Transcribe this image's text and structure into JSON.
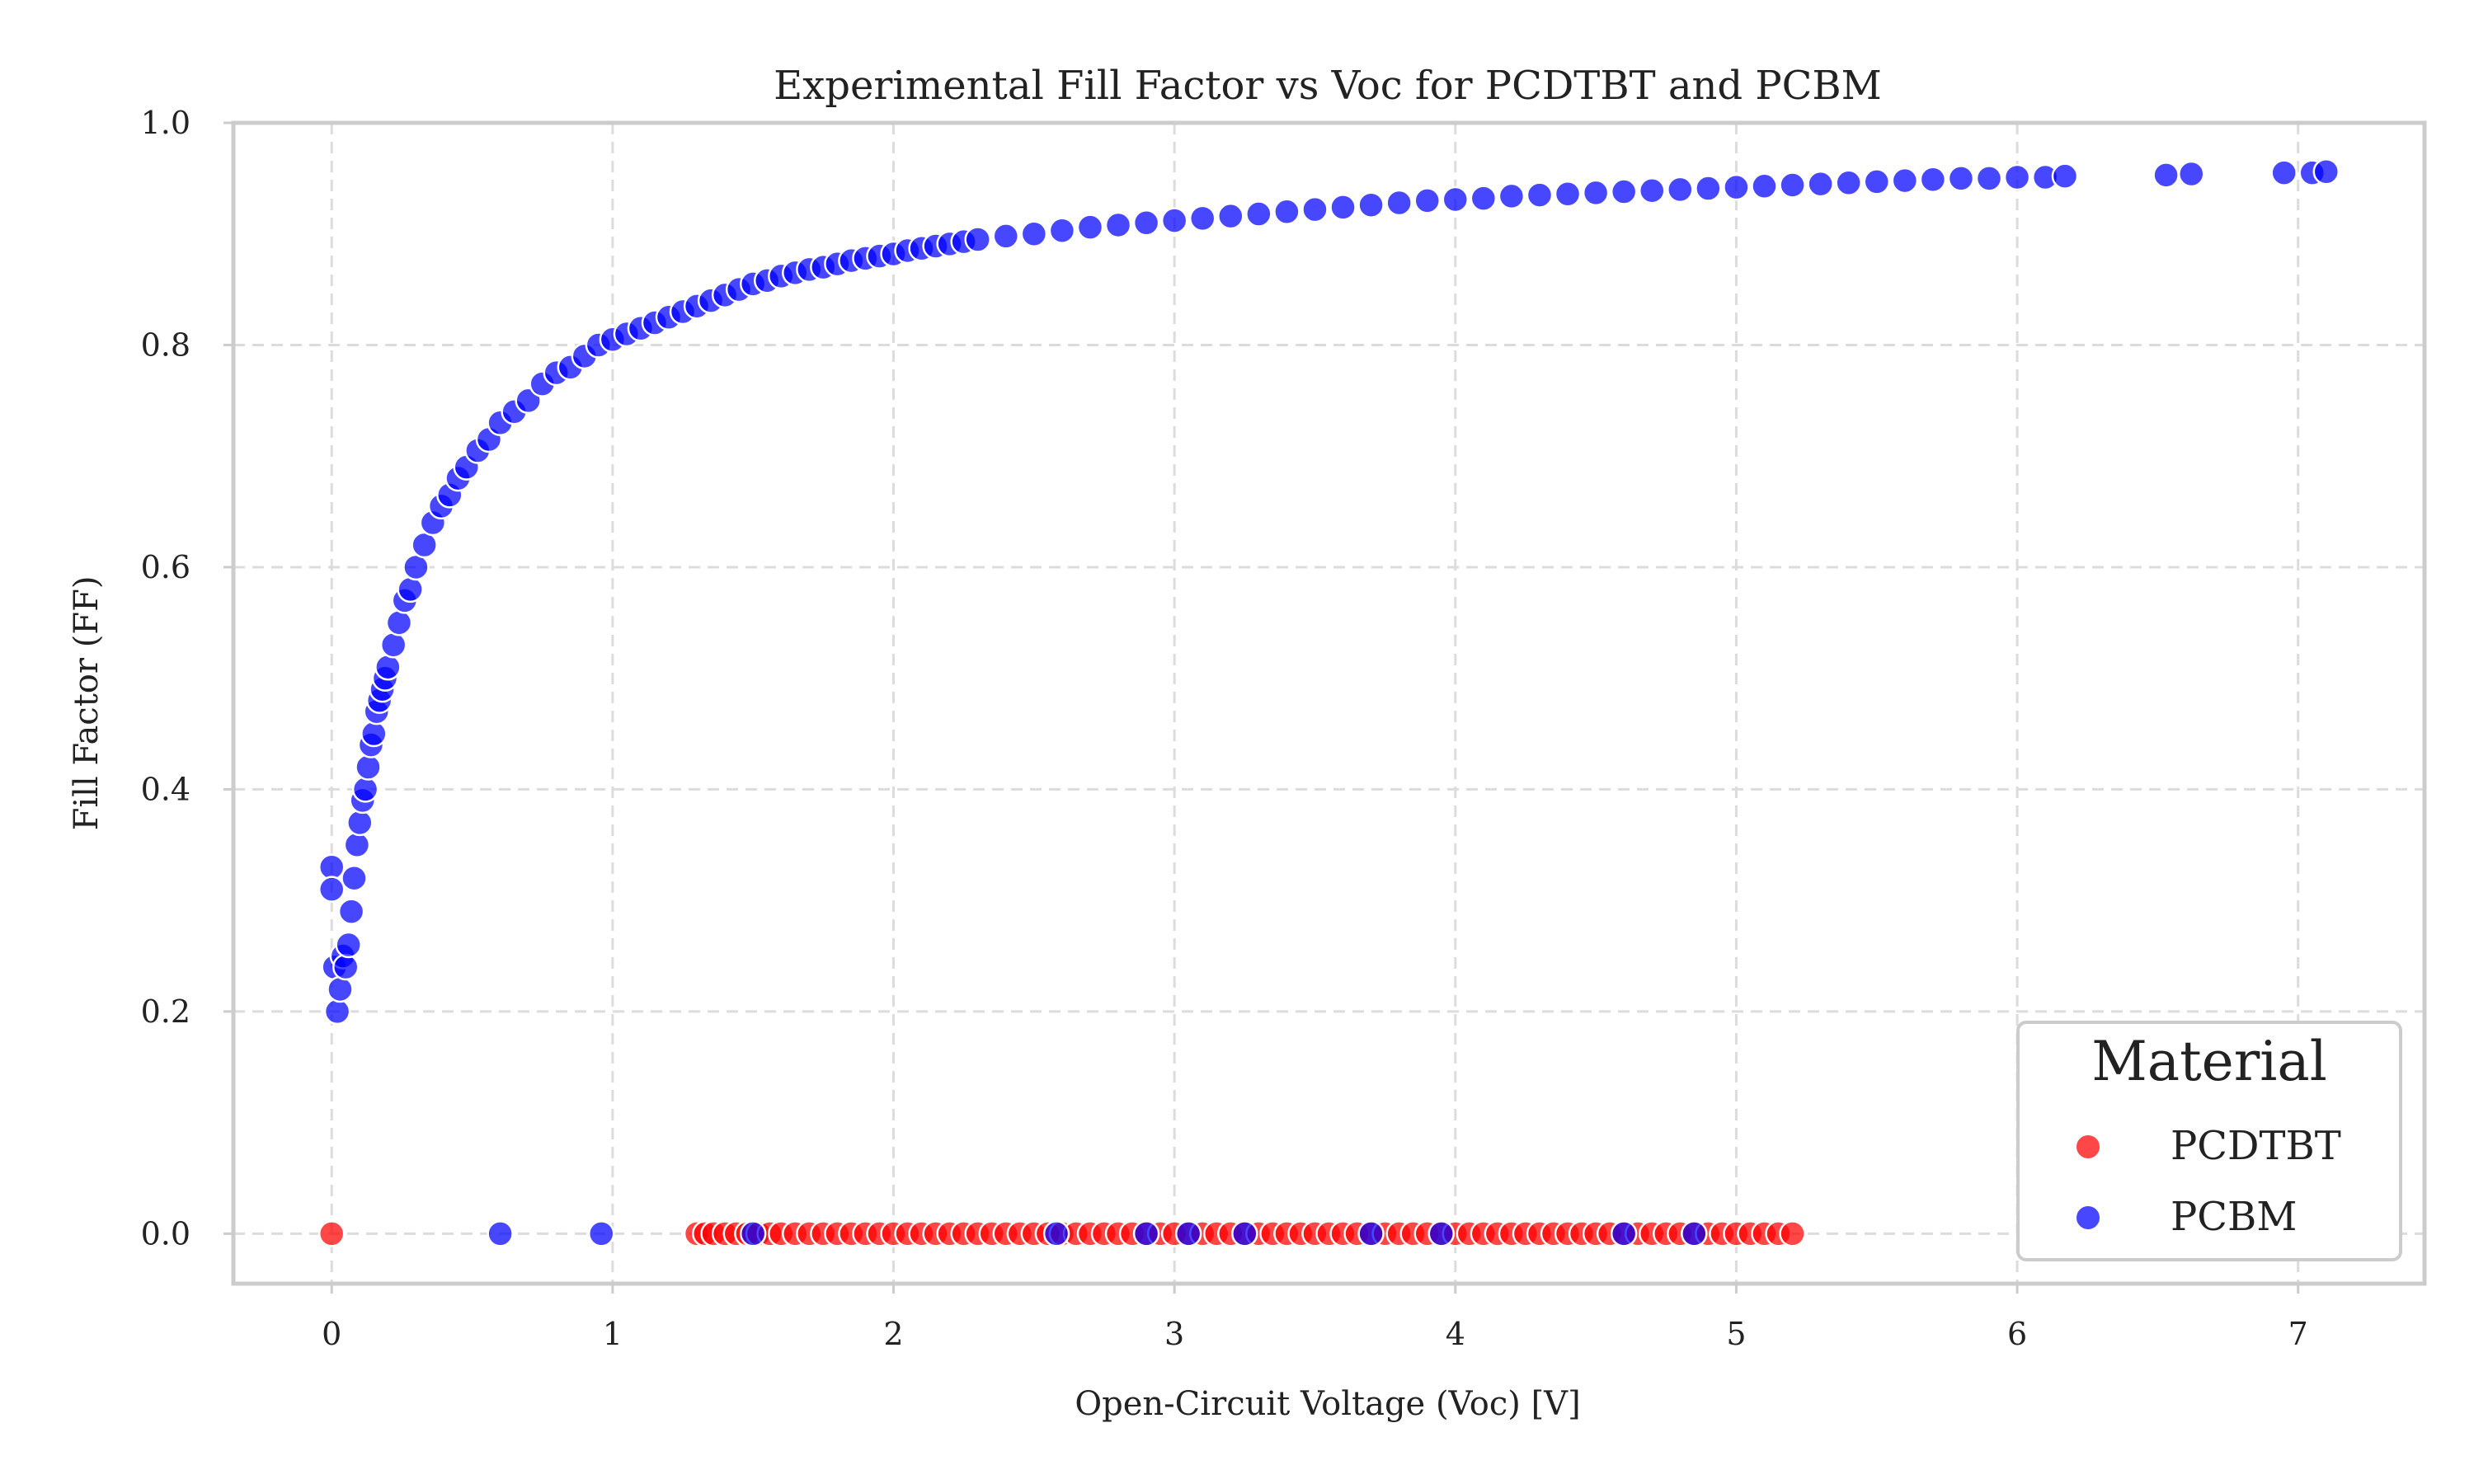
{
  "chart_data": {
    "type": "scatter",
    "title": "Experimental Fill Factor vs Voc for PCDTBT and PCBM",
    "xlabel": "Open-Circuit Voltage (Voc) [V]",
    "ylabel": "Fill Factor (FF)",
    "xlim": [
      -0.35,
      7.45
    ],
    "ylim": [
      -0.045,
      1.0
    ],
    "x_ticks": [
      "0",
      "1",
      "2",
      "3",
      "4",
      "5",
      "6",
      "7"
    ],
    "x_tick_values": [
      0,
      1,
      2,
      3,
      4,
      5,
      6,
      7
    ],
    "y_ticks": [
      "0.0",
      "0.2",
      "0.4",
      "0.6",
      "0.8",
      "1.0"
    ],
    "y_tick_values": [
      0.0,
      0.2,
      0.4,
      0.6,
      0.8,
      1.0
    ],
    "grid": true,
    "legend": {
      "title": "Material",
      "placement": "lower-right"
    },
    "series": [
      {
        "name": "PCDTBT",
        "color": "#ff0000",
        "x": [
          0.0,
          1.3,
          1.33,
          1.36,
          1.4,
          1.44,
          1.48,
          1.52,
          1.56,
          1.6,
          1.65,
          1.7,
          1.75,
          1.8,
          1.85,
          1.9,
          1.95,
          2.0,
          2.05,
          2.1,
          2.15,
          2.2,
          2.25,
          2.3,
          2.35,
          2.4,
          2.45,
          2.5,
          2.55,
          2.6,
          2.65,
          2.7,
          2.75,
          2.8,
          2.85,
          2.9,
          2.95,
          3.0,
          3.05,
          3.1,
          3.15,
          3.2,
          3.25,
          3.3,
          3.35,
          3.4,
          3.45,
          3.5,
          3.55,
          3.6,
          3.65,
          3.7,
          3.75,
          3.8,
          3.85,
          3.9,
          3.95,
          4.0,
          4.05,
          4.1,
          4.15,
          4.2,
          4.25,
          4.3,
          4.35,
          4.4,
          4.45,
          4.5,
          4.55,
          4.6,
          4.65,
          4.7,
          4.75,
          4.8,
          4.85,
          4.9,
          4.95,
          5.0,
          5.05,
          5.1,
          5.15,
          5.2
        ],
        "y": [
          0.0,
          0.0,
          0.0,
          0.0,
          0.0,
          0.0,
          0.0,
          0.0,
          0.0,
          0.0,
          0.0,
          0.0,
          0.0,
          0.0,
          0.0,
          0.0,
          0.0,
          0.0,
          0.0,
          0.0,
          0.0,
          0.0,
          0.0,
          0.0,
          0.0,
          0.0,
          0.0,
          0.0,
          0.0,
          0.0,
          0.0,
          0.0,
          0.0,
          0.0,
          0.0,
          0.0,
          0.0,
          0.0,
          0.0,
          0.0,
          0.0,
          0.0,
          0.0,
          0.0,
          0.0,
          0.0,
          0.0,
          0.0,
          0.0,
          0.0,
          0.0,
          0.0,
          0.0,
          0.0,
          0.0,
          0.0,
          0.0,
          0.0,
          0.0,
          0.0,
          0.0,
          0.0,
          0.0,
          0.0,
          0.0,
          0.0,
          0.0,
          0.0,
          0.0,
          0.0,
          0.0,
          0.0,
          0.0,
          0.0,
          0.0,
          0.0,
          0.0,
          0.0,
          0.0,
          0.0,
          0.0,
          0.0
        ]
      },
      {
        "name": "PCBM",
        "color": "#0000ff",
        "x": [
          0.0,
          0.0,
          0.01,
          0.02,
          0.03,
          0.04,
          0.05,
          0.06,
          0.07,
          0.08,
          0.09,
          0.1,
          0.11,
          0.12,
          0.13,
          0.14,
          0.15,
          0.16,
          0.17,
          0.18,
          0.19,
          0.2,
          0.22,
          0.24,
          0.26,
          0.28,
          0.3,
          0.33,
          0.36,
          0.39,
          0.42,
          0.45,
          0.48,
          0.52,
          0.56,
          0.6,
          0.65,
          0.7,
          0.75,
          0.8,
          0.85,
          0.9,
          0.95,
          1.0,
          1.05,
          1.1,
          1.15,
          1.2,
          1.25,
          1.3,
          1.35,
          1.4,
          1.45,
          1.5,
          1.55,
          1.6,
          1.65,
          1.7,
          1.75,
          1.8,
          1.85,
          1.9,
          1.95,
          2.0,
          2.05,
          2.1,
          2.15,
          2.2,
          2.25,
          2.3,
          2.4,
          2.5,
          2.6,
          2.7,
          2.8,
          2.9,
          3.0,
          3.1,
          3.2,
          3.3,
          3.4,
          3.5,
          3.6,
          3.7,
          3.8,
          3.9,
          4.0,
          4.1,
          4.2,
          4.3,
          4.4,
          4.5,
          4.6,
          4.7,
          4.8,
          4.9,
          5.0,
          5.1,
          5.2,
          5.3,
          5.4,
          5.5,
          5.6,
          5.7,
          5.8,
          5.9,
          6.0,
          6.1,
          6.17,
          6.53,
          6.62,
          6.95,
          7.05,
          7.1,
          0.6,
          0.96,
          1.5,
          2.58,
          2.9,
          3.05,
          3.25,
          3.7,
          3.95,
          4.6,
          4.85
        ],
        "y": [
          0.33,
          0.31,
          0.24,
          0.2,
          0.22,
          0.25,
          0.24,
          0.26,
          0.29,
          0.32,
          0.35,
          0.37,
          0.39,
          0.4,
          0.42,
          0.44,
          0.45,
          0.47,
          0.48,
          0.49,
          0.5,
          0.51,
          0.53,
          0.55,
          0.57,
          0.58,
          0.6,
          0.62,
          0.64,
          0.655,
          0.665,
          0.68,
          0.69,
          0.705,
          0.715,
          0.73,
          0.74,
          0.75,
          0.765,
          0.775,
          0.78,
          0.79,
          0.8,
          0.805,
          0.81,
          0.815,
          0.82,
          0.825,
          0.83,
          0.835,
          0.84,
          0.845,
          0.85,
          0.855,
          0.858,
          0.862,
          0.865,
          0.868,
          0.87,
          0.873,
          0.876,
          0.878,
          0.88,
          0.882,
          0.885,
          0.887,
          0.889,
          0.891,
          0.893,
          0.895,
          0.898,
          0.9,
          0.903,
          0.906,
          0.908,
          0.91,
          0.912,
          0.914,
          0.916,
          0.918,
          0.92,
          0.922,
          0.924,
          0.926,
          0.928,
          0.93,
          0.931,
          0.932,
          0.934,
          0.935,
          0.936,
          0.937,
          0.938,
          0.939,
          0.94,
          0.941,
          0.942,
          0.943,
          0.944,
          0.945,
          0.946,
          0.947,
          0.948,
          0.949,
          0.95,
          0.95,
          0.951,
          0.951,
          0.952,
          0.953,
          0.954,
          0.955,
          0.955,
          0.956,
          0.0,
          0.0,
          0.0,
          0.0,
          0.0,
          0.0,
          0.0,
          0.0,
          0.0,
          0.0,
          0.0
        ]
      }
    ]
  }
}
